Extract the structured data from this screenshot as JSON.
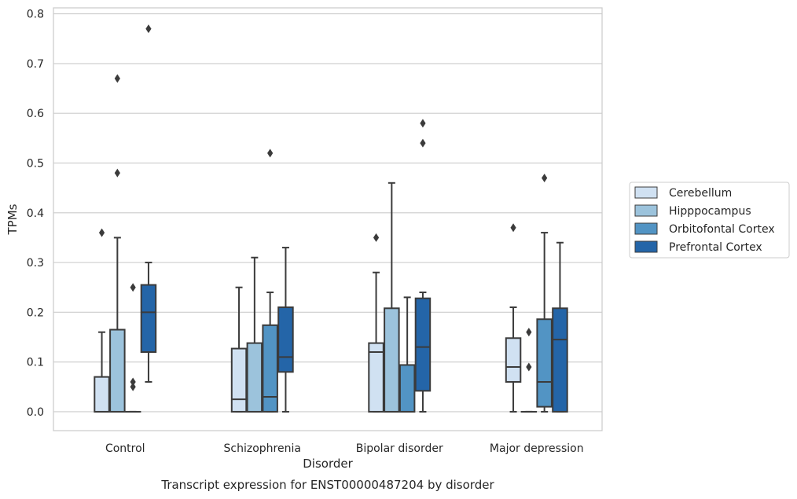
{
  "chart_data": {
    "type": "box",
    "title": "Transcript expression for ENST00000487204 by disorder",
    "xlabel": "Disorder",
    "ylabel": "TPMs",
    "ylim": [
      -0.038,
      0.812
    ],
    "yticks": [
      "0.0",
      "0.1",
      "0.2",
      "0.3",
      "0.4",
      "0.5",
      "0.6",
      "0.7",
      "0.8"
    ],
    "ytick_values": [
      0.0,
      0.1,
      0.2,
      0.3,
      0.4,
      0.5,
      0.6,
      0.7,
      0.8
    ],
    "grid": "horizontal",
    "legend_position": "right",
    "categories": [
      "Control",
      "Schizophrenia",
      "Bipolar disorder",
      "Major depression"
    ],
    "series": [
      {
        "name": "Cerebellum",
        "color": "#d0e1f2",
        "boxes": [
          {
            "whislo": 0.0,
            "q1": 0.0,
            "med": 0.0,
            "q3": 0.07,
            "whishi": 0.16,
            "fliers": [
              0.36
            ]
          },
          {
            "whislo": 0.0,
            "q1": 0.0,
            "med": 0.025,
            "q3": 0.127,
            "whishi": 0.25,
            "fliers": []
          },
          {
            "whislo": 0.0,
            "q1": 0.0,
            "med": 0.12,
            "q3": 0.138,
            "whishi": 0.28,
            "fliers": [
              0.35
            ]
          },
          {
            "whislo": 0.0,
            "q1": 0.06,
            "med": 0.09,
            "q3": 0.148,
            "whishi": 0.21,
            "fliers": [
              0.37
            ]
          }
        ]
      },
      {
        "name": "Hipppocampus",
        "color": "#9cc3dc",
        "boxes": [
          {
            "whislo": 0.0,
            "q1": 0.0,
            "med": 0.0,
            "q3": 0.165,
            "whishi": 0.35,
            "fliers": [
              0.48,
              0.67
            ]
          },
          {
            "whislo": 0.0,
            "q1": 0.0,
            "med": 0.0,
            "q3": 0.138,
            "whishi": 0.31,
            "fliers": []
          },
          {
            "whislo": 0.0,
            "q1": 0.0,
            "med": 0.0,
            "q3": 0.208,
            "whishi": 0.46,
            "fliers": []
          },
          {
            "whislo": 0.0,
            "q1": 0.0,
            "med": 0.0,
            "q3": 0.0,
            "whishi": 0.0,
            "fliers": [
              0.09,
              0.16
            ]
          }
        ]
      },
      {
        "name": "Orbitofontal Cortex",
        "color": "#5294c4",
        "boxes": [
          {
            "whislo": 0.0,
            "q1": 0.0,
            "med": 0.0,
            "q3": 0.0,
            "whishi": 0.0,
            "fliers": [
              0.05,
              0.06,
              0.25
            ]
          },
          {
            "whislo": 0.0,
            "q1": 0.0,
            "med": 0.03,
            "q3": 0.174,
            "whishi": 0.24,
            "fliers": [
              0.52
            ]
          },
          {
            "whislo": 0.0,
            "q1": 0.0,
            "med": 0.0,
            "q3": 0.094,
            "whishi": 0.23,
            "fliers": []
          },
          {
            "whislo": 0.0,
            "q1": 0.01,
            "med": 0.06,
            "q3": 0.186,
            "whishi": 0.36,
            "fliers": [
              0.47
            ]
          }
        ]
      },
      {
        "name": "Prefrontal Cortex",
        "color": "#2465a8",
        "boxes": [
          {
            "whislo": 0.06,
            "q1": 0.12,
            "med": 0.2,
            "q3": 0.255,
            "whishi": 0.3,
            "fliers": [
              0.77
            ]
          },
          {
            "whislo": 0.0,
            "q1": 0.08,
            "med": 0.11,
            "q3": 0.21,
            "whishi": 0.33,
            "fliers": []
          },
          {
            "whislo": 0.0,
            "q1": 0.042,
            "med": 0.13,
            "q3": 0.228,
            "whishi": 0.24,
            "fliers": [
              0.54,
              0.58
            ]
          },
          {
            "whislo": 0.0,
            "q1": 0.0,
            "med": 0.145,
            "q3": 0.208,
            "whishi": 0.34,
            "fliers": []
          }
        ]
      }
    ]
  }
}
